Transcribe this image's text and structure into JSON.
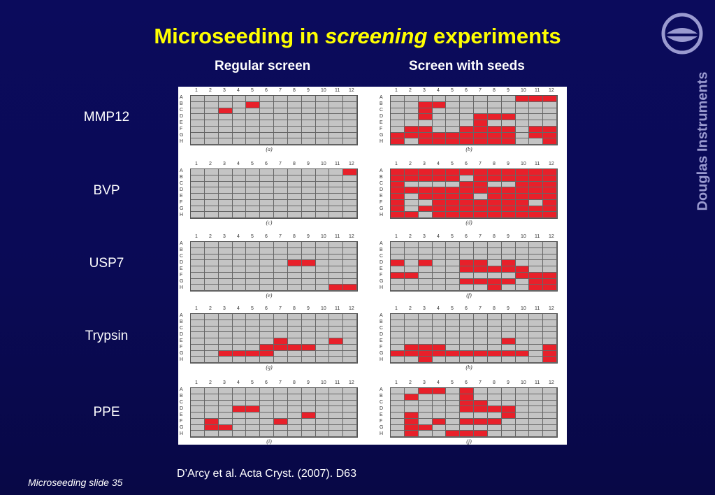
{
  "title": {
    "part1": "Microseeding in ",
    "emph": "screening",
    "part2": " experiments"
  },
  "column_headers": {
    "regular": "Regular screen",
    "seeded": "Screen with seeds"
  },
  "row_labels": [
    "MMP12",
    "BVP",
    "USP7",
    "Trypsin",
    "PPE"
  ],
  "plate": {
    "columns": [
      "1",
      "2",
      "3",
      "4",
      "5",
      "6",
      "7",
      "8",
      "9",
      "10",
      "11",
      "12"
    ],
    "rows": [
      "A",
      "B",
      "C",
      "D",
      "E",
      "F",
      "G",
      "H"
    ]
  },
  "panels": [
    {
      "tag": "(a)",
      "hits": [
        "B5",
        "C3"
      ]
    },
    {
      "tag": "(b)",
      "hits": [
        "A10",
        "A11",
        "A12",
        "B3",
        "B4",
        "C3",
        "D3",
        "D7",
        "D8",
        "D9",
        "E7",
        "F2",
        "F3",
        "F6",
        "F7",
        "F8",
        "F9",
        "F11",
        "F12",
        "G1",
        "G2",
        "G3",
        "G4",
        "G5",
        "G6",
        "G7",
        "G8",
        "G9",
        "G11",
        "G12",
        "H1",
        "H3",
        "H4",
        "H5",
        "H6",
        "H7",
        "H8",
        "H9",
        "H12"
      ]
    },
    {
      "tag": "(c)",
      "hits": [
        "A12"
      ]
    },
    {
      "tag": "(d)",
      "hits": [
        "A1",
        "A2",
        "A3",
        "A4",
        "A5",
        "A6",
        "A7",
        "A8",
        "A9",
        "A10",
        "A11",
        "A12",
        "B1",
        "B2",
        "B3",
        "B4",
        "B5",
        "B7",
        "B8",
        "B9",
        "B10",
        "B11",
        "B12",
        "C1",
        "C6",
        "C7",
        "C10",
        "C11",
        "C12",
        "D1",
        "D2",
        "D3",
        "D4",
        "D5",
        "D6",
        "D7",
        "D8",
        "D9",
        "D10",
        "D11",
        "D12",
        "E1",
        "E3",
        "E4",
        "E5",
        "E6",
        "E8",
        "E9",
        "E10",
        "E11",
        "E12",
        "F1",
        "F4",
        "F5",
        "F6",
        "F7",
        "F8",
        "F9",
        "F10",
        "F12",
        "G1",
        "G3",
        "G4",
        "G5",
        "G6",
        "G7",
        "G8",
        "G9",
        "G10",
        "G11",
        "G12",
        "H1",
        "H2",
        "H4",
        "H5",
        "H6",
        "H7",
        "H8",
        "H9",
        "H10",
        "H11",
        "H12"
      ]
    },
    {
      "tag": "(e)",
      "hits": [
        "D8",
        "D9",
        "H11",
        "H12"
      ]
    },
    {
      "tag": "(f)",
      "hits": [
        "D1",
        "D3",
        "D6",
        "D7",
        "D9",
        "E6",
        "E7",
        "E8",
        "E9",
        "E10",
        "F1",
        "F2",
        "F10",
        "F11",
        "F12",
        "G6",
        "G7",
        "G8",
        "G9",
        "G11",
        "G12",
        "H8",
        "H11",
        "H12"
      ]
    },
    {
      "tag": "(g)",
      "hits": [
        "E7",
        "E11",
        "F6",
        "F7",
        "F8",
        "F9",
        "G3",
        "G4",
        "G5",
        "G6"
      ]
    },
    {
      "tag": "(h)",
      "hits": [
        "E9",
        "F2",
        "F3",
        "F4",
        "F12",
        "G1",
        "G2",
        "G3",
        "G4",
        "G5",
        "G6",
        "G7",
        "G8",
        "G9",
        "G10",
        "G12",
        "H3",
        "H12"
      ]
    },
    {
      "tag": "(i)",
      "hits": [
        "D4",
        "D5",
        "E9",
        "F2",
        "F7",
        "G2",
        "G3"
      ]
    },
    {
      "tag": "(j)",
      "hits": [
        "A3",
        "A4",
        "A6",
        "B2",
        "B6",
        "C6",
        "C7",
        "D6",
        "D7",
        "D8",
        "D9",
        "E2",
        "E9",
        "F2",
        "F4",
        "F6",
        "F7",
        "F8",
        "G2",
        "G3",
        "H2",
        "H5",
        "H6",
        "H7"
      ]
    }
  ],
  "citation": "D’Arcy et al. Acta Cryst. (2007). D63",
  "footer": "Microseeding slide 35",
  "brand": "Douglas Instruments",
  "colors": {
    "title": "#ffff00",
    "hit": "#e8202a",
    "empty": "#c4c4c4",
    "background": "#0a0a55",
    "brand": "#9a9ad0"
  }
}
